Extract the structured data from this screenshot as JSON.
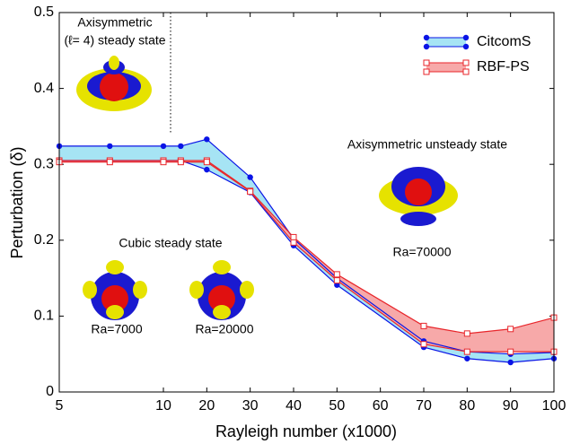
{
  "chart_data": {
    "type": "range-band",
    "xlabel": "Rayleigh number (x1000)",
    "ylabel": "Perturbation (δ)",
    "xlim": [
      5,
      100
    ],
    "ylim": [
      0,
      0.5
    ],
    "xticks": [
      5,
      10,
      20,
      30,
      40,
      50,
      60,
      70,
      80,
      90,
      100
    ],
    "yticks": [
      0,
      0.1,
      0.2,
      0.3,
      0.4,
      0.5
    ],
    "x": [
      5,
      7,
      10,
      14,
      20,
      30,
      40,
      50,
      70,
      80,
      90,
      100
    ],
    "series": [
      {
        "name": "CitcomS",
        "color": "#0a14e6",
        "fill": "#a6e4f4",
        "upper": [
          0.324,
          0.324,
          0.324,
          0.324,
          0.333,
          0.283,
          0.202,
          0.15,
          0.067,
          0.053,
          0.05,
          0.052
        ],
        "lower": [
          0.305,
          0.305,
          0.305,
          0.305,
          0.293,
          0.263,
          0.193,
          0.141,
          0.059,
          0.044,
          0.039,
          0.044
        ]
      },
      {
        "name": "RBF-PS",
        "color": "#e8262b",
        "fill": "#f7a9a9",
        "upper": [
          0.305,
          0.305,
          0.305,
          0.305,
          0.305,
          0.265,
          0.204,
          0.155,
          0.087,
          0.077,
          0.083,
          0.098
        ],
        "lower": [
          0.303,
          0.303,
          0.303,
          0.303,
          0.303,
          0.264,
          0.197,
          0.147,
          0.063,
          0.053,
          0.053,
          0.053
        ]
      }
    ],
    "legend": "upper right",
    "annotations": [
      "Axisymmetric",
      "(ℓ= 4) steady state",
      "Axisymmetric unsteady state",
      "Ra=70000",
      "Cubic steady state",
      "Ra=7000",
      "Ra=20000"
    ]
  }
}
